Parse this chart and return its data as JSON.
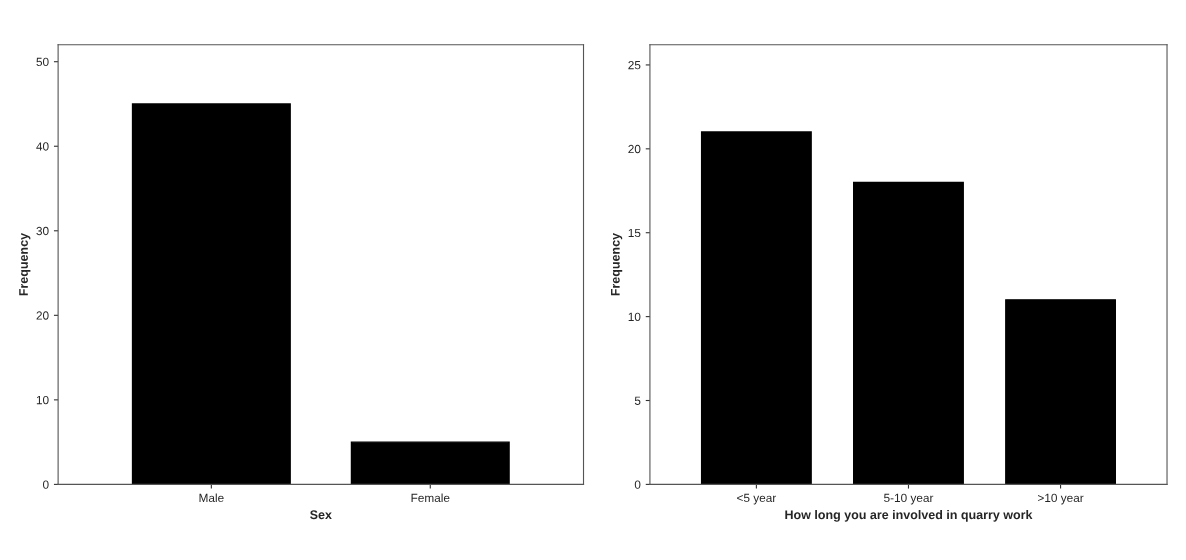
{
  "chart_data": [
    {
      "type": "bar",
      "xlabel": "Sex",
      "ylabel": "Frequency",
      "categories": [
        "Male",
        "Female"
      ],
      "values": [
        45,
        5
      ],
      "color": "#000000",
      "ylim": [
        0,
        52
      ],
      "yticks": [
        0,
        10,
        20,
        30,
        40,
        50
      ],
      "grid": false,
      "legend": false
    },
    {
      "type": "bar",
      "xlabel": "How long you are involved in quarry work",
      "ylabel": "Frequency",
      "categories": [
        "<5 year",
        "5-10 year",
        ">10 year"
      ],
      "values": [
        21,
        18,
        11
      ],
      "color": "#000000",
      "ylim": [
        0,
        26.2
      ],
      "yticks": [
        0,
        5,
        10,
        15,
        20,
        25
      ],
      "grid": false,
      "legend": false
    }
  ]
}
